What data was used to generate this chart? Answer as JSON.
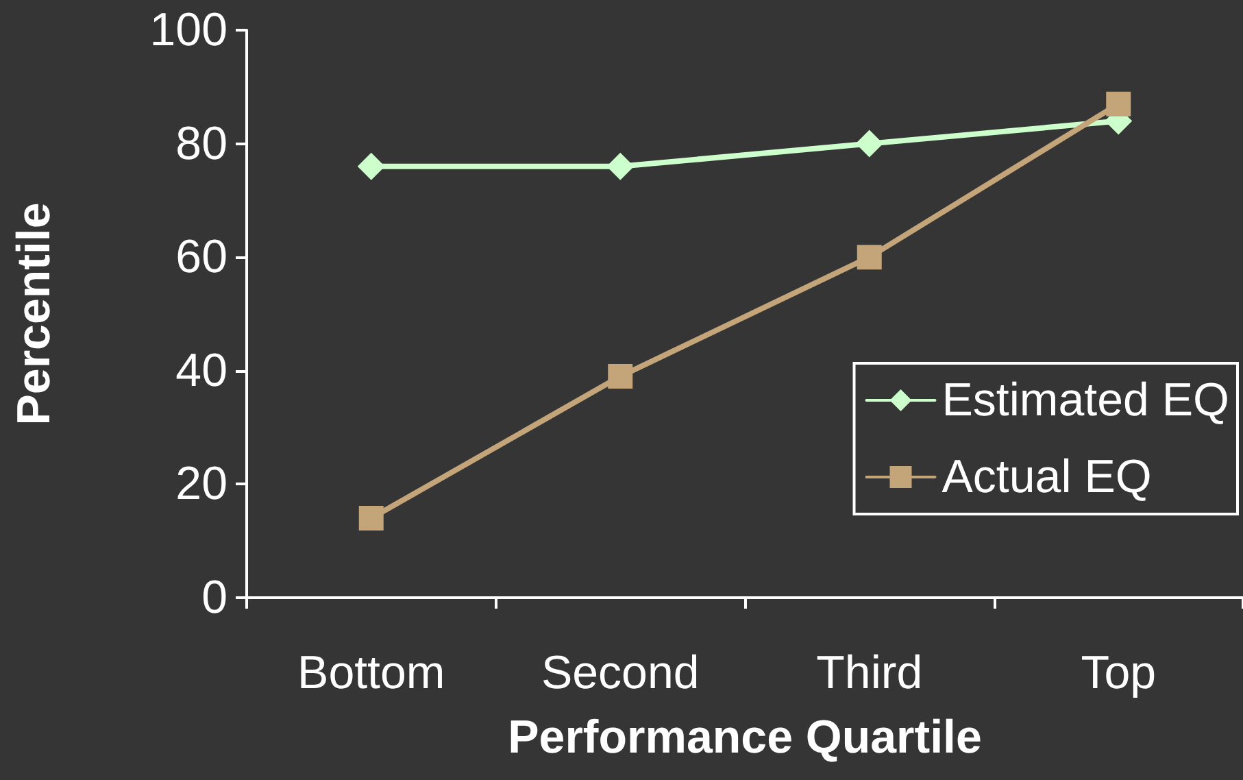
{
  "chart_data": {
    "type": "line",
    "xlabel": "Performance Quartile",
    "ylabel": "Percentile",
    "categories": [
      "Bottom",
      "Second",
      "Third",
      "Top"
    ],
    "series": [
      {
        "name": "Estimated EQ",
        "color": "#ccffcc",
        "marker": "diamond",
        "values": [
          76,
          76,
          80,
          84
        ]
      },
      {
        "name": "Actual EQ",
        "color": "#c4a57a",
        "marker": "square",
        "values": [
          14,
          39,
          60,
          87
        ]
      }
    ],
    "ylim": [
      0,
      100
    ],
    "yticks": [
      0,
      20,
      40,
      60,
      80,
      100
    ],
    "grid": false,
    "legend": "right",
    "line_style": "solid"
  }
}
